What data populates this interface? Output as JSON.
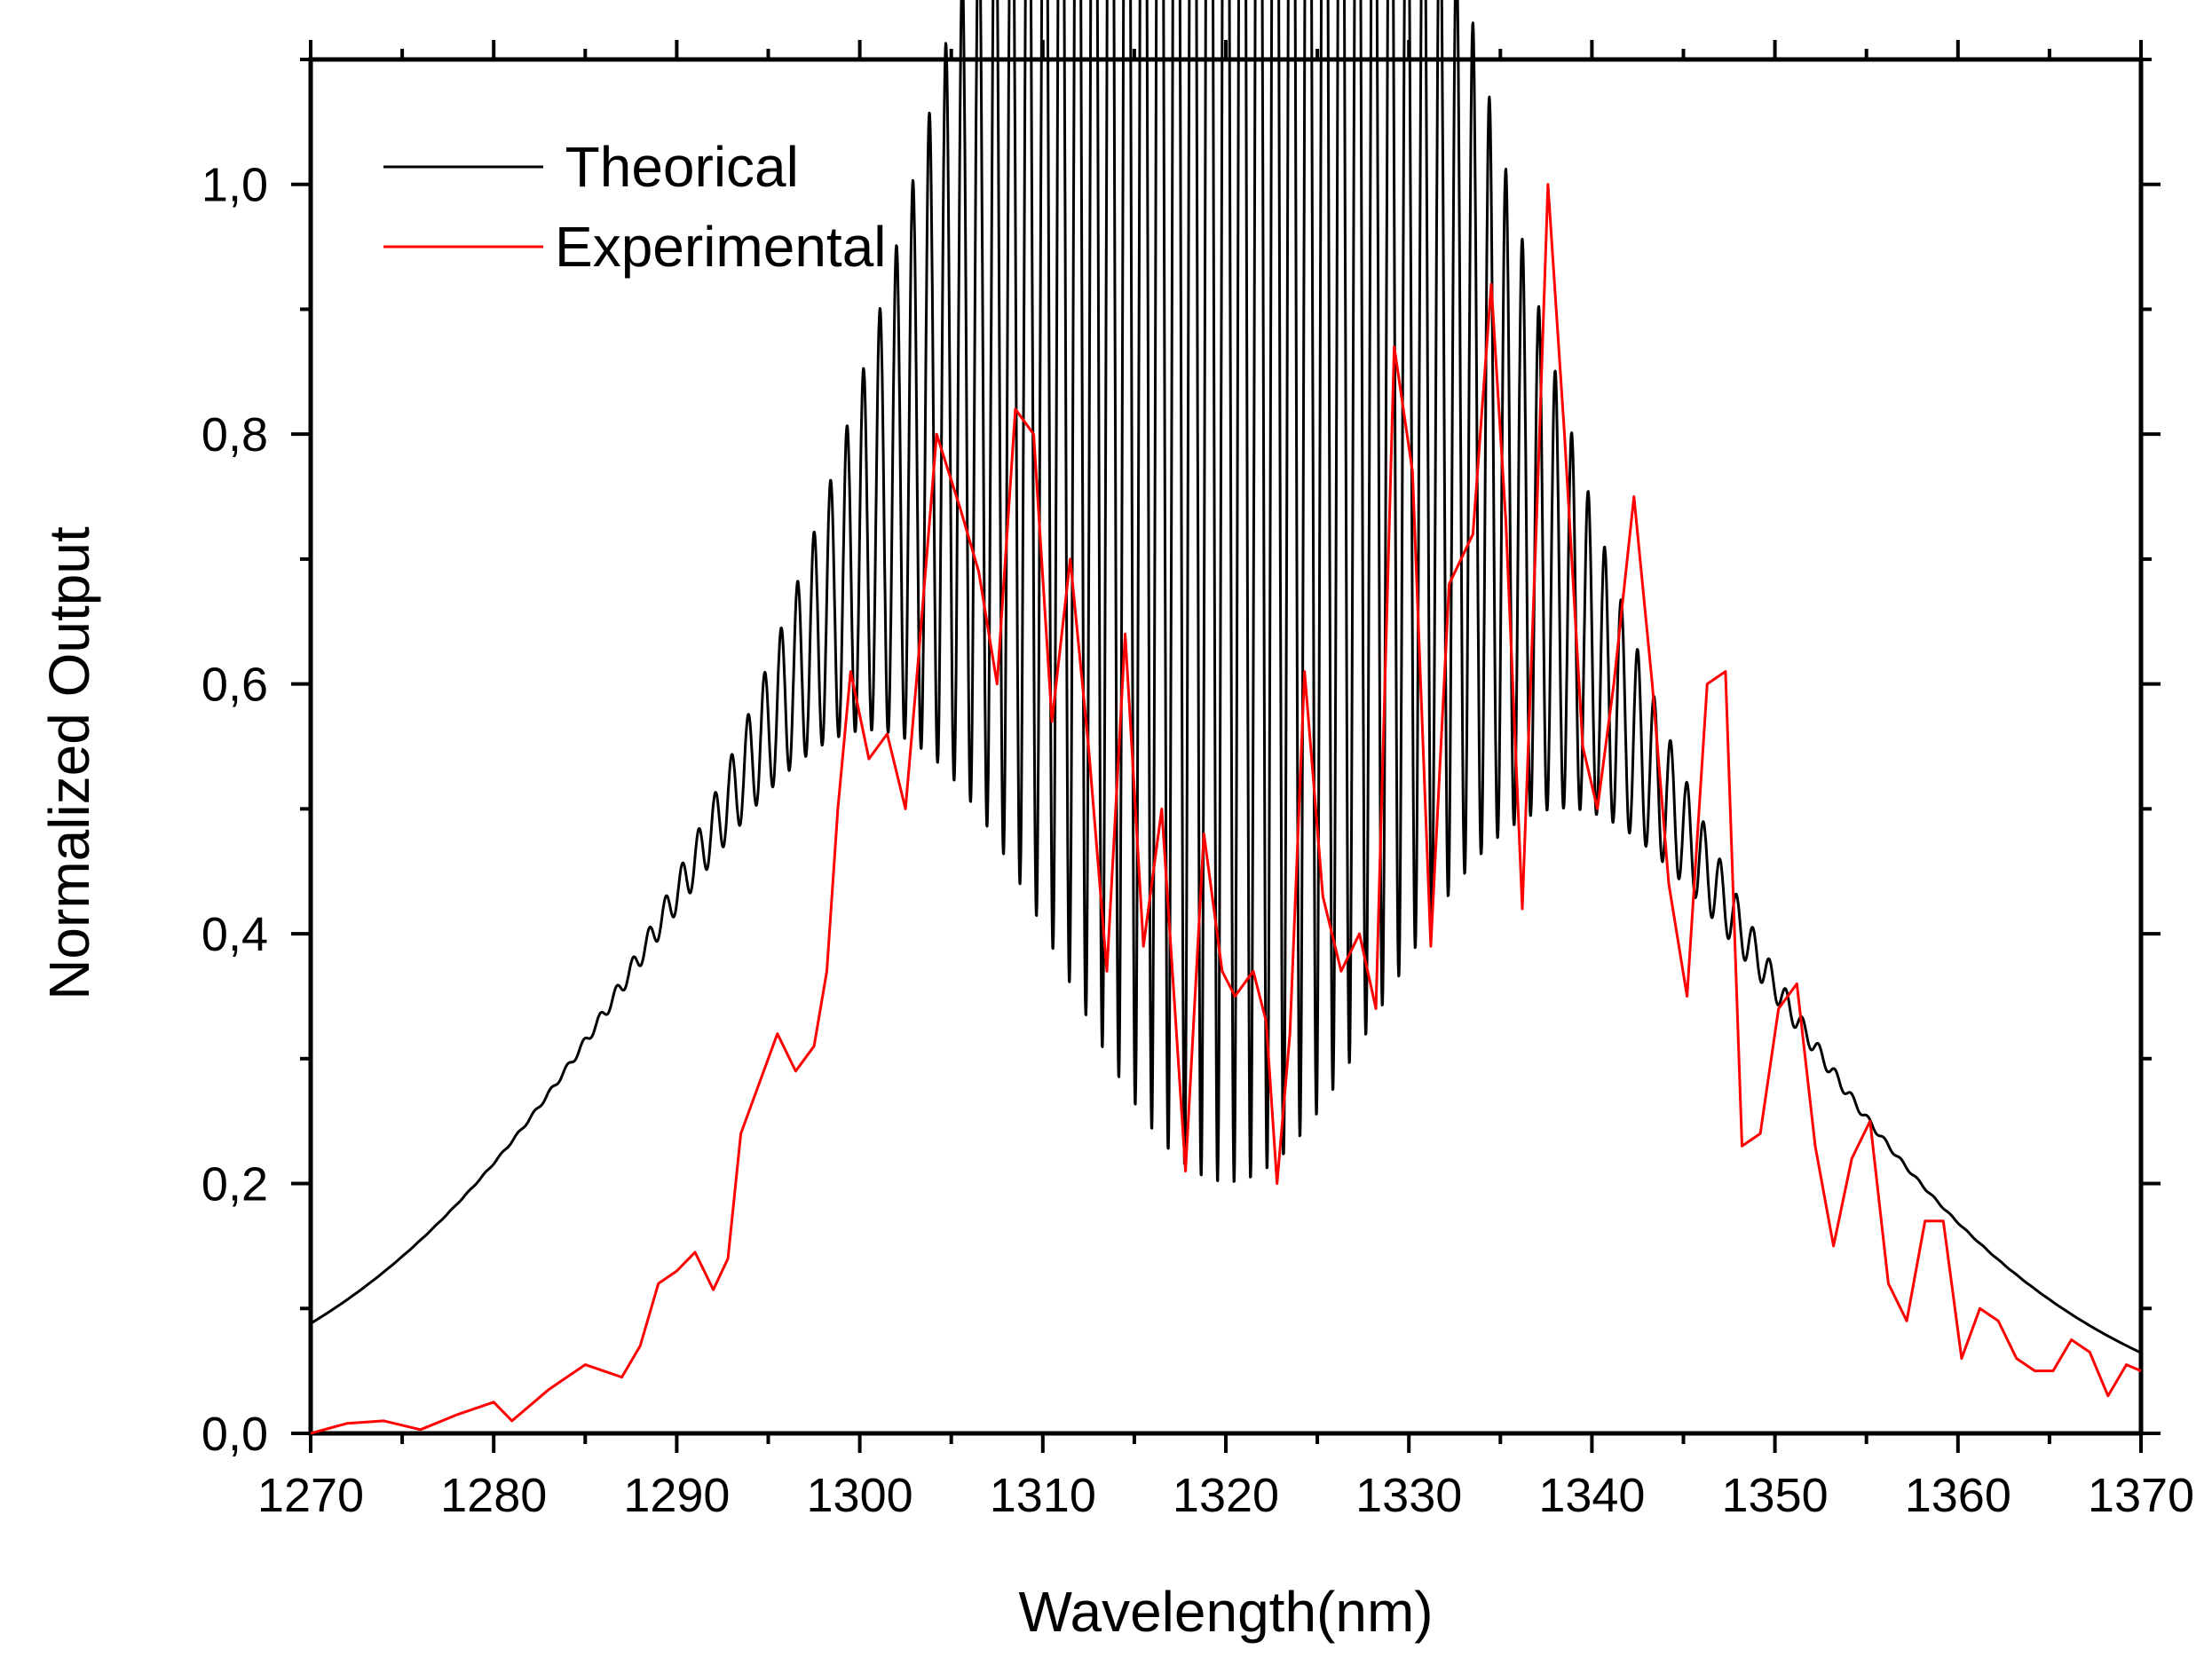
{
  "chart_data": {
    "type": "line",
    "title": "",
    "xlabel": "Wavelength(nm)",
    "ylabel": "Normalized Output",
    "xlim": [
      1270,
      1370
    ],
    "ylim": [
      0.0,
      1.1
    ],
    "grid": false,
    "legend_position": "top-left",
    "x_ticks": [
      1270,
      1280,
      1290,
      1300,
      1310,
      1320,
      1330,
      1340,
      1350,
      1360,
      1370
    ],
    "x_tick_labels": [
      "1270",
      "1280",
      "1290",
      "1300",
      "1310",
      "1320",
      "1330",
      "1340",
      "1350",
      "1360",
      "1370"
    ],
    "y_ticks": [
      0.0,
      0.2,
      0.4,
      0.6,
      0.8,
      1.0
    ],
    "y_tick_labels": [
      "0,0",
      "0,2",
      "0,4",
      "0,6",
      "0,8",
      "1,0"
    ],
    "series": [
      {
        "name": " Theorical",
        "color": "#000000",
        "model": {
          "envelope_center": 1318.5,
          "envelope_sigma": 22.0,
          "fringe_center": 1320.0,
          "fringe_sigma": 12.0,
          "fringe_period": 0.9,
          "fringe_depth": 0.8
        }
      },
      {
        "name": "Experimental",
        "color": "#ff0000",
        "x": [
          1270,
          1272,
          1274,
          1276,
          1278,
          1280,
          1281,
          1283,
          1285,
          1287,
          1288,
          1289,
          1290,
          1291,
          1292,
          1292.8,
          1293.5,
          1294.5,
          1295.5,
          1296.5,
          1297.5,
          1298.2,
          1298.8,
          1299.5,
          1300.5,
          1301.5,
          1302.5,
          1303.2,
          1304.2,
          1305.5,
          1306.5,
          1307.5,
          1308.5,
          1309.5,
          1310.5,
          1311.5,
          1312.5,
          1313.5,
          1314.5,
          1315.5,
          1316.5,
          1317.8,
          1318.8,
          1319.8,
          1320.5,
          1321.5,
          1322.2,
          1322.8,
          1323.5,
          1324.3,
          1325.3,
          1326.3,
          1327.3,
          1328.2,
          1329.2,
          1330.2,
          1331.2,
          1332.2,
          1333.5,
          1334.5,
          1335.3,
          1336.2,
          1337.0,
          1337.6,
          1338.5,
          1339.5,
          1340.3,
          1341.2,
          1342.3,
          1343.3,
          1344.2,
          1345.2,
          1346.3,
          1347.3,
          1348.2,
          1349.2,
          1350.2,
          1351.2,
          1352.2,
          1353.2,
          1354.2,
          1355.2,
          1356.2,
          1357.2,
          1358.2,
          1359.2,
          1360.2,
          1361.2,
          1362.2,
          1363.2,
          1364.2,
          1365.2,
          1366.2,
          1367.2,
          1368.2,
          1369.2,
          1370
        ],
        "y": [
          0.0,
          0.008,
          0.01,
          0.003,
          0.015,
          0.025,
          0.01,
          0.035,
          0.055,
          0.045,
          0.07,
          0.12,
          0.13,
          0.145,
          0.115,
          0.14,
          0.24,
          0.28,
          0.32,
          0.29,
          0.31,
          0.37,
          0.5,
          0.61,
          0.54,
          0.56,
          0.5,
          0.62,
          0.8,
          0.74,
          0.69,
          0.6,
          0.82,
          0.8,
          0.57,
          0.7,
          0.55,
          0.37,
          0.64,
          0.39,
          0.5,
          0.21,
          0.48,
          0.37,
          0.35,
          0.37,
          0.33,
          0.2,
          0.32,
          0.61,
          0.43,
          0.37,
          0.4,
          0.34,
          0.87,
          0.77,
          0.39,
          0.68,
          0.72,
          0.92,
          0.73,
          0.42,
          0.74,
          1.0,
          0.8,
          0.55,
          0.5,
          0.6,
          0.75,
          0.6,
          0.44,
          0.35,
          0.6,
          0.61,
          0.23,
          0.24,
          0.34,
          0.36,
          0.23,
          0.15,
          0.22,
          0.25,
          0.12,
          0.09,
          0.17,
          0.17,
          0.06,
          0.1,
          0.09,
          0.06,
          0.05,
          0.05,
          0.075,
          0.065,
          0.03,
          0.055,
          0.05
        ]
      }
    ]
  }
}
